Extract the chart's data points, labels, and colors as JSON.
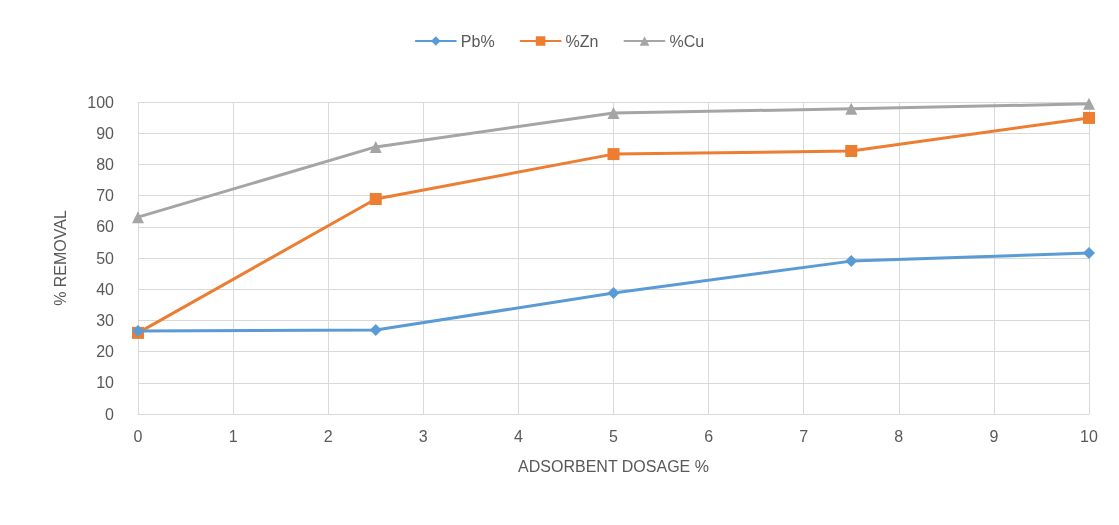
{
  "chart_data": {
    "type": "line",
    "xlabel": "ADSORBENT DOSAGE %",
    "ylabel": "% REMOVAL",
    "x": [
      0,
      2.5,
      5,
      7.5,
      10
    ],
    "series": [
      {
        "name": "Pb%",
        "color": "#5b9bd5",
        "marker": "diamond",
        "values": [
          26.6,
          26.9,
          38.8,
          49,
          51.6
        ]
      },
      {
        "name": "%Zn",
        "color": "#ed7d31",
        "marker": "square",
        "values": [
          26,
          68.9,
          83.3,
          84.3,
          94.9
        ]
      },
      {
        "name": "%Cu",
        "color": "#a5a5a5",
        "marker": "triangle",
        "values": [
          63.1,
          85.6,
          96.5,
          97.8,
          99.4
        ]
      }
    ],
    "xlim": [
      0,
      10
    ],
    "xticks": [
      0,
      1,
      2,
      3,
      4,
      5,
      6,
      7,
      8,
      9,
      10
    ],
    "ylim": [
      0,
      100
    ],
    "yticks": [
      0,
      10,
      20,
      30,
      40,
      50,
      60,
      70,
      80,
      90,
      100
    ],
    "grid": true,
    "legend": "top",
    "line_style": "solid"
  }
}
